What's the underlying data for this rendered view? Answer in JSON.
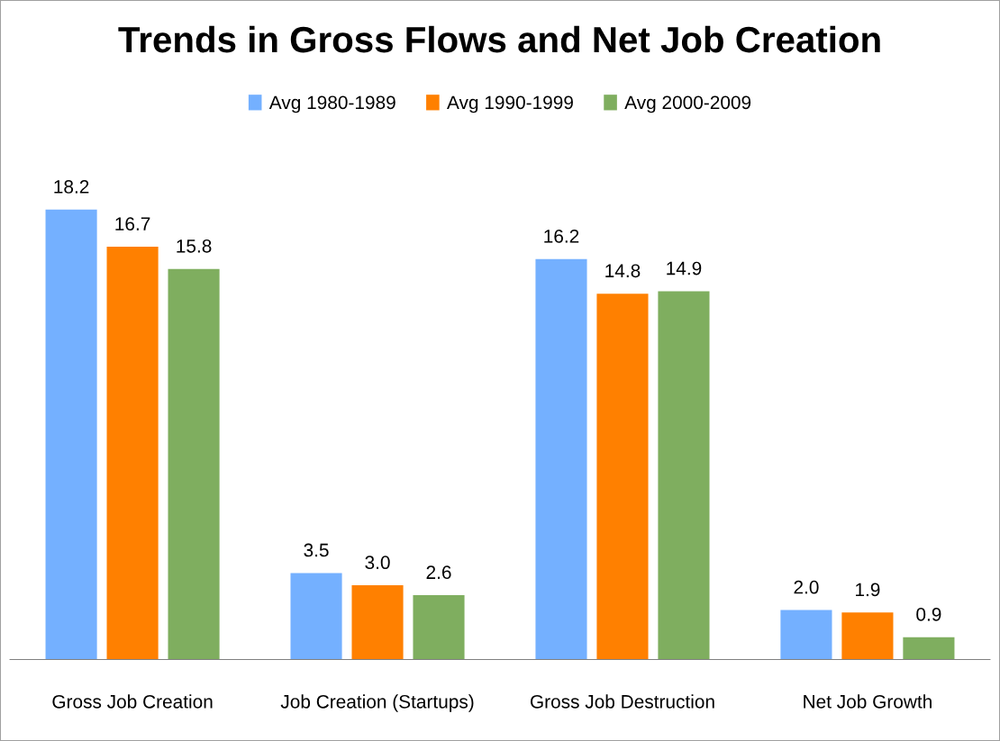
{
  "chart_data": {
    "type": "bar",
    "title": "Trends in Gross Flows and Net Job Creation",
    "categories": [
      "Gross Job Creation",
      "Job Creation (Startups)",
      "Gross Job Destruction",
      "Net Job Growth"
    ],
    "series": [
      {
        "name": "Avg 1980-1989",
        "color": "#74b0ff",
        "values": [
          18.2,
          3.5,
          16.2,
          2.0
        ],
        "value_labels": [
          "18.2",
          "3.5",
          "16.2",
          "2.0"
        ]
      },
      {
        "name": "Avg 1990-1999",
        "color": "#ff8000",
        "values": [
          16.7,
          3.0,
          14.8,
          1.9
        ],
        "value_labels": [
          "16.7",
          "3.0",
          "14.8",
          "1.9"
        ]
      },
      {
        "name": "Avg 2000-2009",
        "color": "#7fae5f",
        "values": [
          15.8,
          2.6,
          14.9,
          0.9
        ],
        "value_labels": [
          "15.8",
          "2.6",
          "14.9",
          "0.9"
        ]
      }
    ],
    "legend": "top",
    "grid": false
  }
}
